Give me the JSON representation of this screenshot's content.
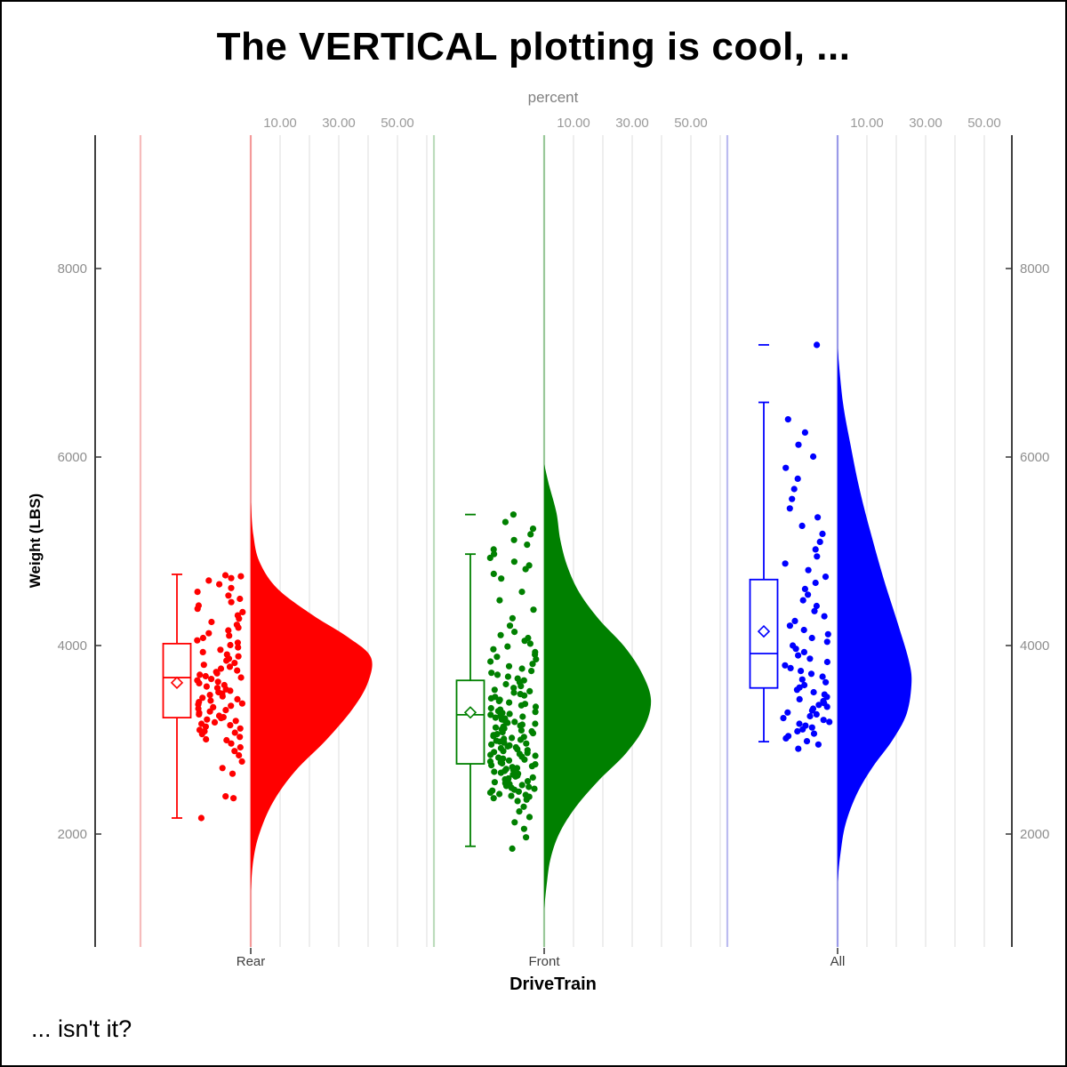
{
  "title": "The VERTICAL plotting is cool, ...",
  "caption": "... isn't it?",
  "chart_data": {
    "type": "raincloud (half-violin + box plot + jittered points), vertical orientation",
    "x_axis": {
      "label": "DriveTrain",
      "categories": [
        "Rear",
        "Front",
        "All"
      ]
    },
    "y_axis": {
      "label": "Weight (LBS)",
      "ticks": [
        2000,
        4000,
        6000,
        8000
      ],
      "range": [
        800,
        9400
      ],
      "mirrored_right": true
    },
    "top_axis": {
      "label": "percent",
      "tick_labels": [
        "10.00",
        "30.00",
        "50.00"
      ],
      "tick_values": [
        10,
        30,
        50
      ],
      "gridline_values": [
        10,
        20,
        30,
        40,
        50,
        60
      ]
    },
    "groups": [
      {
        "name": "Rear",
        "color": "#FF0000",
        "light_line": "#f6bcbc",
        "baseline_line": "#f49a9a",
        "box": {
          "low": 2170,
          "q1": 3235,
          "median": 3660,
          "mean": 3605,
          "q3": 4020,
          "high": 4755,
          "far_out": null
        },
        "violin": [
          [
            5519,
            0
          ],
          [
            5170,
            0.9
          ],
          [
            4887,
            3
          ],
          [
            4604,
            9.1
          ],
          [
            4321,
            21.2
          ],
          [
            4085,
            33.3
          ],
          [
            3877,
            40.9
          ],
          [
            3613,
            40
          ],
          [
            3330,
            34.8
          ],
          [
            3000,
            25.8
          ],
          [
            2670,
            15.2
          ],
          [
            2340,
            7.6
          ],
          [
            2009,
            3
          ],
          [
            1726,
            0.9
          ],
          [
            1396,
            0
          ]
        ],
        "points": [
          2170,
          2380,
          2400,
          2640,
          2700,
          2770,
          2835,
          2880,
          2920,
          2960,
          2995,
          3005,
          3030,
          3060,
          3075,
          3090,
          3105,
          3120,
          3140,
          3155,
          3170,
          3185,
          3200,
          3215,
          3230,
          3240,
          3255,
          3270,
          3285,
          3300,
          3315,
          3330,
          3345,
          3360,
          3375,
          3385,
          3400,
          3415,
          3430,
          3445,
          3460,
          3475,
          3490,
          3505,
          3520,
          3535,
          3550,
          3565,
          3580,
          3600,
          3615,
          3630,
          3645,
          3660,
          3675,
          3690,
          3705,
          3720,
          3735,
          3755,
          3775,
          3795,
          3815,
          3840,
          3860,
          3885,
          3905,
          3930,
          3955,
          3980,
          4005,
          4030,
          4055,
          4080,
          4105,
          4130,
          4160,
          4190,
          4220,
          4250,
          4285,
          4320,
          4355,
          4390,
          4425,
          4460,
          4495,
          4530,
          4570,
          4610,
          4650,
          4690,
          4715,
          4735,
          4745
        ]
      },
      {
        "name": "Front",
        "color": "#008000",
        "light_line": "#bcdcbc",
        "baseline_line": "#9ac89a",
        "box": {
          "low": 1870,
          "q1": 2745,
          "median": 3265,
          "mean": 3290,
          "q3": 3630,
          "high": 4970,
          "far_out": 5390
        },
        "violin": [
          [
            5925,
            0
          ],
          [
            5689,
            1.8
          ],
          [
            5406,
            4.2
          ],
          [
            5123,
            5.5
          ],
          [
            4840,
            7.9
          ],
          [
            4557,
            12.1
          ],
          [
            4274,
            18.8
          ],
          [
            3991,
            27.3
          ],
          [
            3708,
            33.3
          ],
          [
            3425,
            36.4
          ],
          [
            3142,
            34.2
          ],
          [
            2858,
            27.9
          ],
          [
            2575,
            18.8
          ],
          [
            2292,
            10.9
          ],
          [
            2009,
            5.2
          ],
          [
            1726,
            2.1
          ],
          [
            1443,
            0.8
          ],
          [
            1208,
            0
          ]
        ],
        "points": [
          1845,
          1965,
          2055,
          2125,
          2180,
          2240,
          2290,
          2350,
          2365,
          2380,
          2395,
          2405,
          2415,
          2425,
          2440,
          2450,
          2460,
          2470,
          2480,
          2490,
          2500,
          2510,
          2520,
          2530,
          2540,
          2550,
          2560,
          2570,
          2580,
          2590,
          2600,
          2610,
          2620,
          2630,
          2640,
          2650,
          2660,
          2670,
          2680,
          2690,
          2700,
          2710,
          2720,
          2730,
          2740,
          2750,
          2760,
          2770,
          2780,
          2790,
          2800,
          2810,
          2820,
          2830,
          2840,
          2850,
          2860,
          2870,
          2880,
          2890,
          2900,
          2910,
          2920,
          2930,
          2940,
          2950,
          2960,
          2970,
          2980,
          2990,
          3000,
          3010,
          3020,
          3030,
          3040,
          3050,
          3060,
          3070,
          3080,
          3090,
          3100,
          3110,
          3120,
          3130,
          3140,
          3150,
          3160,
          3170,
          3180,
          3190,
          3200,
          3215,
          3225,
          3235,
          3245,
          3255,
          3265,
          3275,
          3285,
          3295,
          3305,
          3320,
          3335,
          3350,
          3365,
          3380,
          3395,
          3410,
          3425,
          3440,
          3455,
          3470,
          3485,
          3500,
          3515,
          3530,
          3550,
          3570,
          3590,
          3610,
          3630,
          3650,
          3670,
          3690,
          3710,
          3730,
          3755,
          3780,
          3805,
          3830,
          3855,
          3880,
          3905,
          3930,
          3960,
          3990,
          4020,
          4050,
          4080,
          4110,
          4145,
          4210,
          4290,
          4380,
          4480,
          4570,
          4710,
          4760,
          4810,
          4850,
          4890,
          4930,
          4970,
          5020,
          5070,
          5120,
          5180,
          5240,
          5310,
          5390
        ]
      },
      {
        "name": "All",
        "color": "#0000FF",
        "light_line": "#bcbcf0",
        "baseline_line": "#9a9ae8",
        "box": {
          "low": 2980,
          "q1": 3550,
          "median": 3915,
          "mean": 4150,
          "q3": 4700,
          "high": 6580,
          "far_out": 7190
        },
        "violin": [
          [
            7151,
            0
          ],
          [
            6585,
            1.8
          ],
          [
            6113,
            4.5
          ],
          [
            5642,
            7.6
          ],
          [
            5170,
            11.5
          ],
          [
            4698,
            15.8
          ],
          [
            4226,
            20.6
          ],
          [
            3849,
            24.2
          ],
          [
            3613,
            25.2
          ],
          [
            3283,
            23.6
          ],
          [
            3000,
            18.8
          ],
          [
            2717,
            12.1
          ],
          [
            2434,
            6.7
          ],
          [
            2104,
            2.7
          ],
          [
            1774,
            0.9
          ],
          [
            1491,
            0
          ]
        ],
        "points": [
          2905,
          2950,
          2985,
          3015,
          3040,
          3065,
          3090,
          3110,
          3130,
          3150,
          3170,
          3190,
          3210,
          3230,
          3250,
          3270,
          3290,
          3310,
          3330,
          3350,
          3370,
          3390,
          3410,
          3430,
          3455,
          3480,
          3505,
          3530,
          3555,
          3580,
          3610,
          3640,
          3670,
          3700,
          3730,
          3760,
          3790,
          3825,
          3860,
          3895,
          3930,
          3965,
          4000,
          4040,
          4080,
          4120,
          4165,
          4210,
          4260,
          4310,
          4365,
          4420,
          4480,
          4540,
          4600,
          4665,
          4730,
          4800,
          4870,
          4945,
          5020,
          5100,
          5185,
          5270,
          5360,
          5455,
          5555,
          5660,
          5770,
          5885,
          6005,
          6130,
          6260,
          6400,
          7190
        ]
      }
    ]
  }
}
